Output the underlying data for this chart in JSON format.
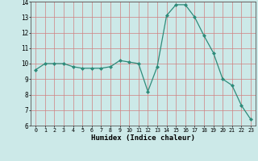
{
  "x": [
    0,
    1,
    2,
    3,
    4,
    5,
    6,
    7,
    8,
    9,
    10,
    11,
    12,
    13,
    14,
    15,
    16,
    17,
    18,
    19,
    20,
    21,
    22,
    23
  ],
  "y": [
    9.6,
    10.0,
    10.0,
    10.0,
    9.8,
    9.7,
    9.7,
    9.7,
    9.8,
    10.2,
    10.1,
    10.0,
    8.2,
    9.8,
    13.1,
    13.8,
    13.8,
    13.0,
    11.8,
    10.7,
    9.0,
    8.6,
    7.3,
    6.4
  ],
  "line_color": "#2e8b7a",
  "marker": "D",
  "marker_size": 2.0,
  "bg_color": "#cce9e8",
  "grid_color": "#d08080",
  "xlabel": "Humidex (Indice chaleur)",
  "ylim": [
    6,
    14
  ],
  "xlim_min": -0.5,
  "xlim_max": 23.5,
  "yticks": [
    6,
    7,
    8,
    9,
    10,
    11,
    12,
    13,
    14
  ],
  "xticks": [
    0,
    1,
    2,
    3,
    4,
    5,
    6,
    7,
    8,
    9,
    10,
    11,
    12,
    13,
    14,
    15,
    16,
    17,
    18,
    19,
    20,
    21,
    22,
    23
  ]
}
